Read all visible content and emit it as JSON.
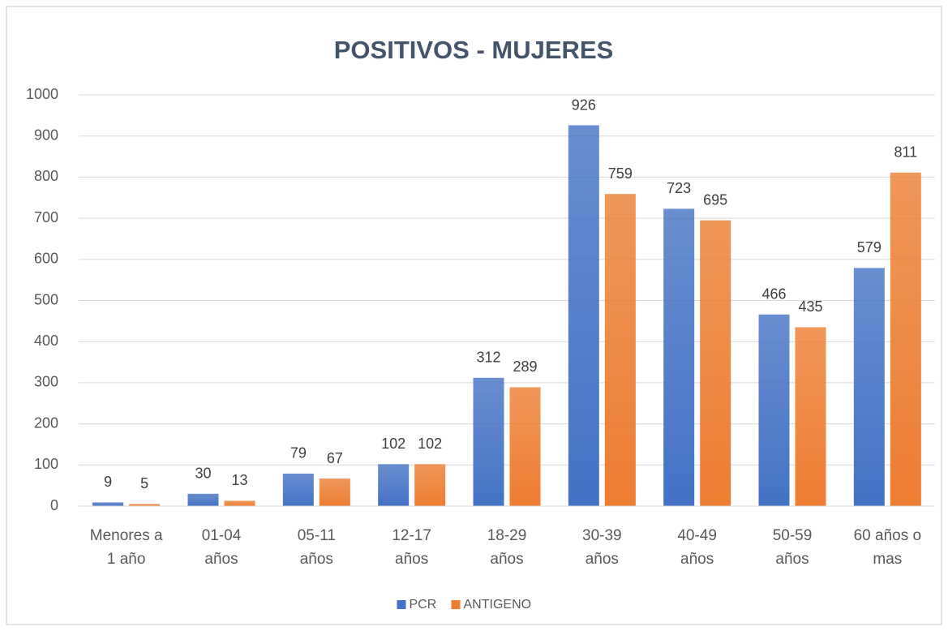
{
  "chart_data": {
    "type": "bar",
    "title": "POSITIVOS - MUJERES",
    "categories": [
      "Menores a 1 año",
      "01-04 años",
      "05-11 años",
      "12-17 años",
      "18-29 años",
      "30-39 años",
      "40-49 años",
      "50-59 años",
      "60 años o mas"
    ],
    "series": [
      {
        "name": "PCR",
        "color": "#4472c4",
        "values": [
          9,
          30,
          79,
          102,
          312,
          926,
          723,
          466,
          579
        ]
      },
      {
        "name": "ANTIGENO",
        "color": "#ed7d31",
        "values": [
          5,
          13,
          67,
          102,
          289,
          759,
          695,
          435,
          811
        ]
      }
    ],
    "ylim": [
      0,
      1000
    ],
    "yticks": [
      0,
      100,
      200,
      300,
      400,
      500,
      600,
      700,
      800,
      900,
      1000
    ],
    "grid": true,
    "legend": "bottom"
  }
}
